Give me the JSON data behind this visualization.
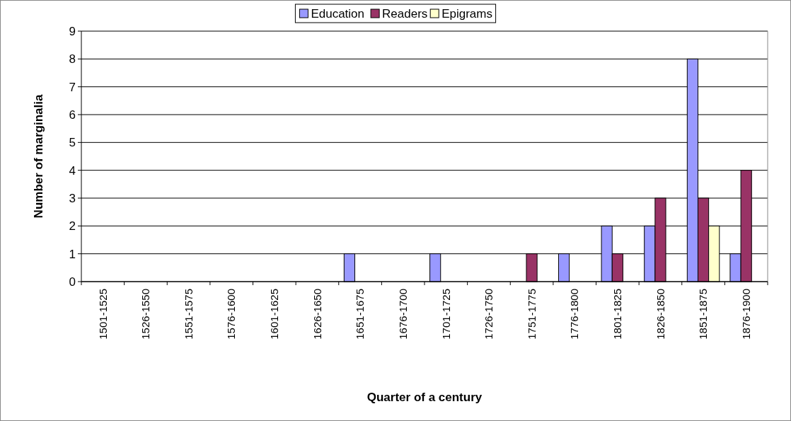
{
  "chart_data": {
    "type": "bar",
    "xlabel": "Quarter of a century",
    "ylabel": "Number of marginalia",
    "categories": [
      "1501-1525",
      "1526-1550",
      "1551-1575",
      "1576-1600",
      "1601-1625",
      "1626-1650",
      "1651-1675",
      "1676-1700",
      "1701-1725",
      "1726-1750",
      "1751-1775",
      "1776-1800",
      "1801-1825",
      "1826-1850",
      "1851-1875",
      "1876-1900"
    ],
    "series": [
      {
        "name": "Education",
        "color": "#9999ff",
        "values": [
          0,
          0,
          0,
          0,
          0,
          0,
          1,
          0,
          1,
          0,
          0,
          1,
          2,
          2,
          8,
          1
        ]
      },
      {
        "name": "Readers",
        "color": "#993366",
        "values": [
          0,
          0,
          0,
          0,
          0,
          0,
          0,
          0,
          0,
          0,
          1,
          0,
          1,
          3,
          3,
          4
        ]
      },
      {
        "name": "Epigrams",
        "color": "#ffffcc",
        "values": [
          0,
          0,
          0,
          0,
          0,
          0,
          0,
          0,
          0,
          0,
          0,
          0,
          0,
          0,
          2,
          0
        ]
      }
    ],
    "ylim": [
      0,
      9
    ],
    "yticks": [
      0,
      1,
      2,
      3,
      4,
      5,
      6,
      7,
      8,
      9
    ],
    "grid": "y",
    "legend": "top"
  }
}
